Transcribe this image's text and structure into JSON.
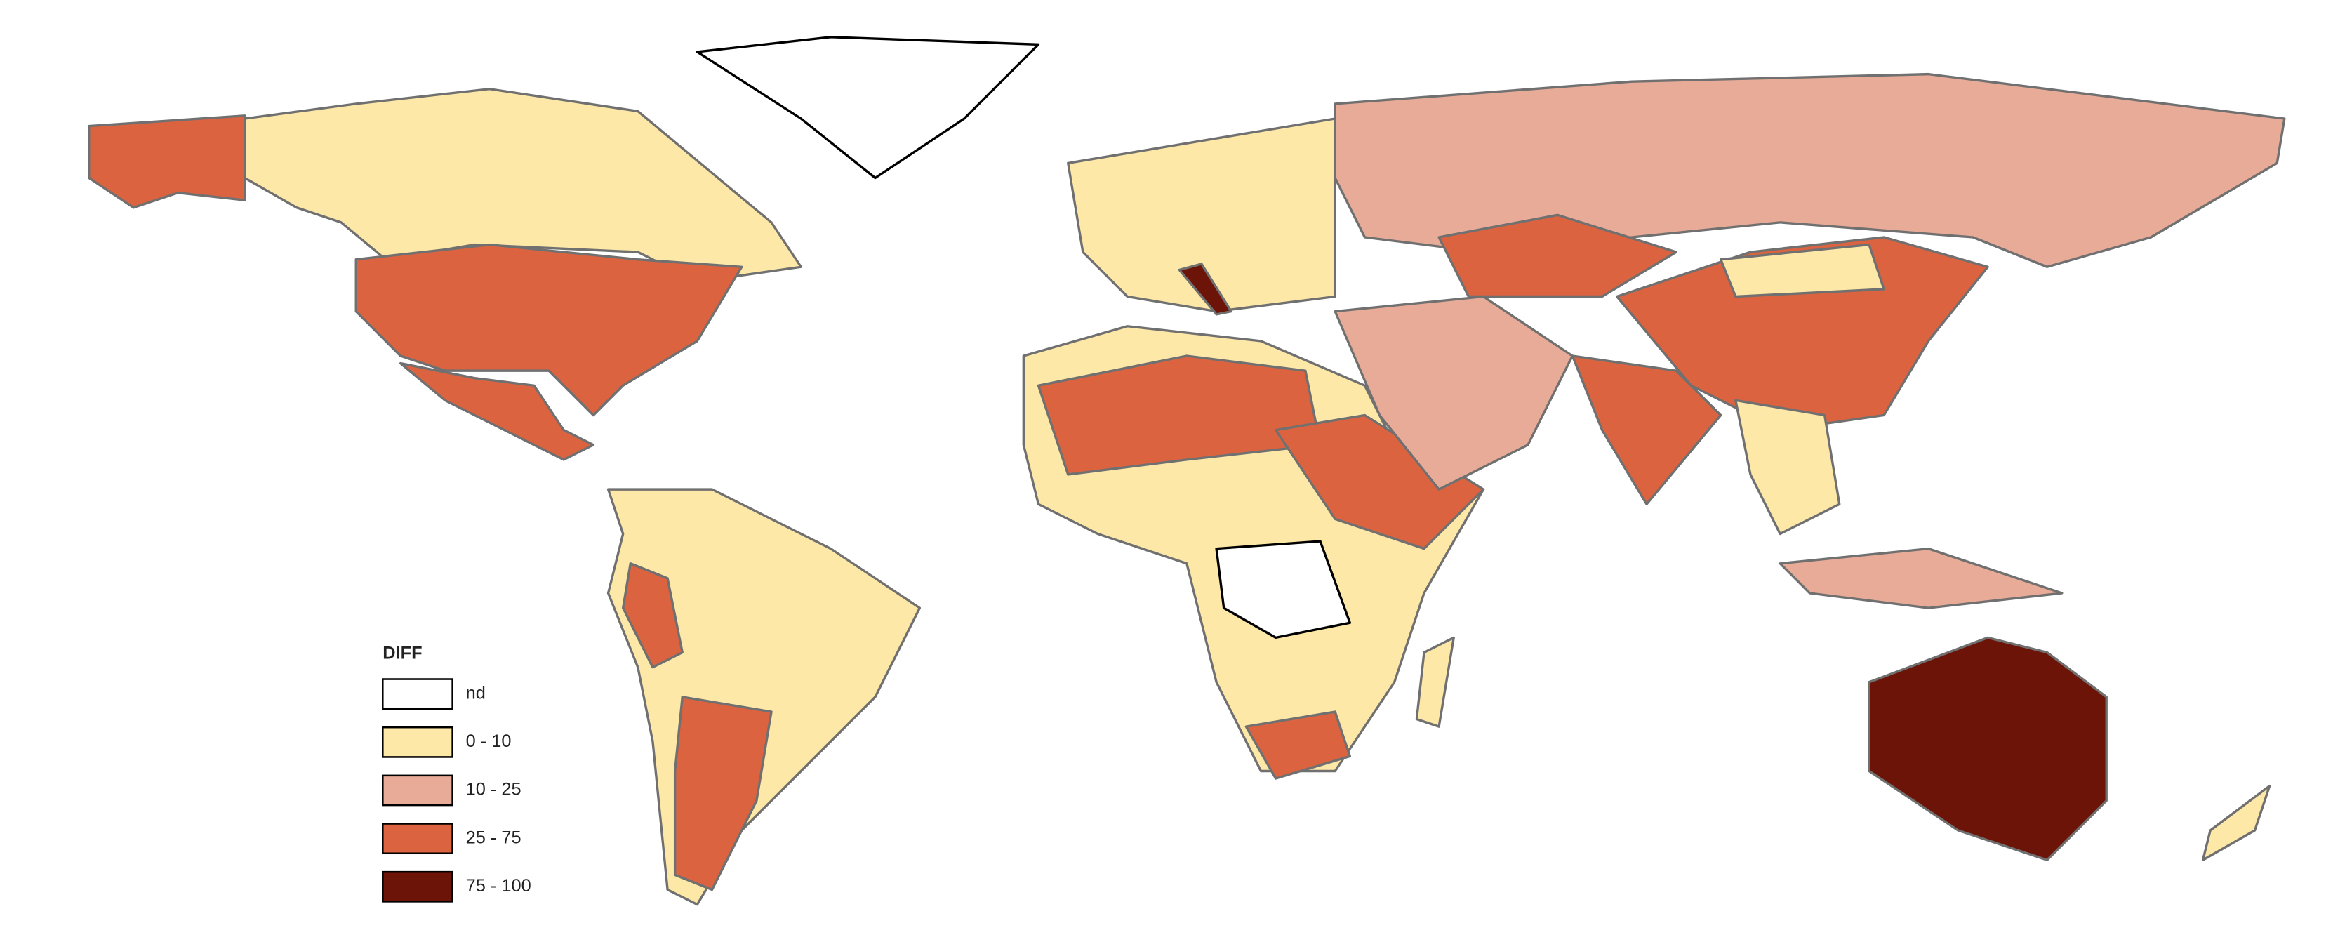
{
  "legend": {
    "title": "DIFF",
    "items": [
      {
        "label": "nd",
        "color": "#ffffff"
      },
      {
        "label": "0 - 10",
        "color": "#fde8a8"
      },
      {
        "label": "10 - 25",
        "color": "#e8ab97"
      },
      {
        "label": "25 - 75",
        "color": "#db6340"
      },
      {
        "label": "75 - 100",
        "color": "#6b1407"
      }
    ]
  }
}
